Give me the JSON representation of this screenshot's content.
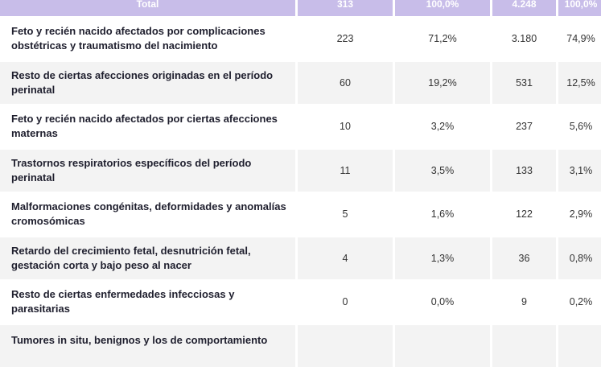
{
  "header": {
    "label": "Total",
    "n1": "313",
    "p1": "100,0%",
    "n2": "4.248",
    "p2": "100,0%"
  },
  "rows": [
    {
      "label": "Feto y recién nacido afectados por complicaciones obstétricas y traumatismo del nacimiento",
      "n1": "223",
      "p1": "71,2%",
      "n2": "3.180",
      "p2": "74,9%"
    },
    {
      "label": "Resto de ciertas afecciones originadas en el período perinatal",
      "n1": "60",
      "p1": "19,2%",
      "n2": "531",
      "p2": "12,5%"
    },
    {
      "label": "Feto y recién nacido afectados por ciertas afecciones maternas",
      "n1": "10",
      "p1": "3,2%",
      "n2": "237",
      "p2": "5,6%"
    },
    {
      "label": "Trastornos respiratorios específicos del período perinatal",
      "n1": "11",
      "p1": "3,5%",
      "n2": "133",
      "p2": "3,1%"
    },
    {
      "label": "Malformaciones congénitas, deformidades y anomalías cromosómicas",
      "n1": "5",
      "p1": "1,6%",
      "n2": "122",
      "p2": "2,9%"
    },
    {
      "label": "Retardo del crecimiento fetal, desnutrición fetal, gestación corta y bajo peso al nacer",
      "n1": "4",
      "p1": "1,3%",
      "n2": "36",
      "p2": "0,8%"
    },
    {
      "label": "Resto de ciertas enfermedades infecciosas y parasitarias",
      "n1": "0",
      "p1": "0,0%",
      "n2": "9",
      "p2": "0,2%"
    },
    {
      "label": "Tumores in situ, benignos y los de comportamiento",
      "n1": "",
      "p1": "",
      "n2": "",
      "p2": ""
    }
  ]
}
